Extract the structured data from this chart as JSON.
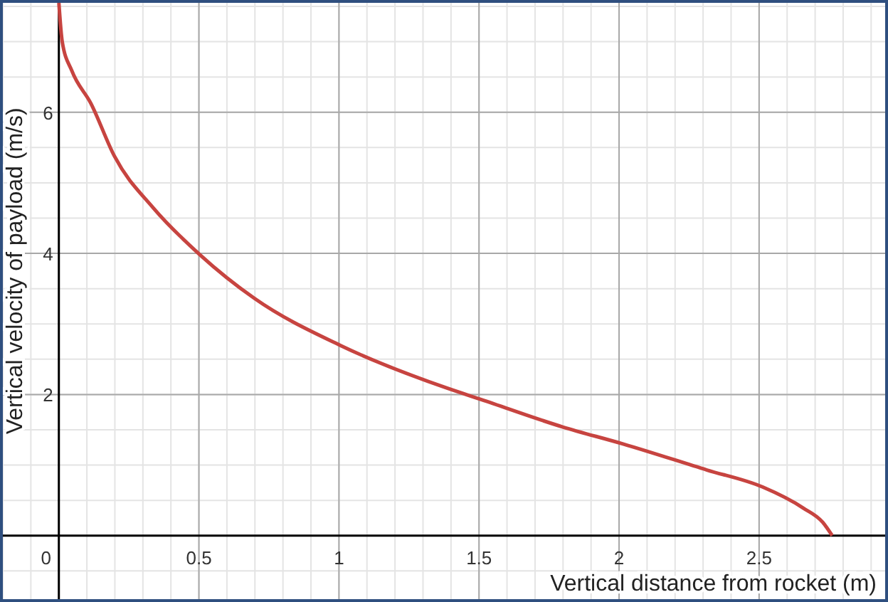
{
  "chart_data": {
    "type": "line",
    "xlabel": "Vertical distance from rocket (m)",
    "ylabel": "Vertical velocity of payload (m/s)",
    "xlim": [
      -0.2,
      2.95
    ],
    "ylim": [
      -0.9,
      7.55
    ],
    "xticks": [
      0,
      0.5,
      1,
      1.5,
      2,
      2.5
    ],
    "yticks": [
      2,
      4,
      6
    ],
    "grid": true,
    "marker": "none",
    "line_style": "solid",
    "series": [
      {
        "color": "#c74440",
        "x": [
          0,
          0.012,
          0.046,
          0.115,
          0.198,
          0.338,
          0.501,
          0.699,
          1.008,
          1.386,
          1.507,
          1.799,
          2.014,
          2.314,
          2.512,
          2.658,
          2.727,
          2.761
        ],
        "values": [
          7.55,
          7.0,
          6.59,
          6.12,
          5.38,
          4.64,
          3.99,
          3.36,
          2.69,
          2.09,
          1.93,
          1.54,
          1.3,
          0.93,
          0.69,
          0.39,
          0.19,
          0
        ]
      }
    ]
  }
}
